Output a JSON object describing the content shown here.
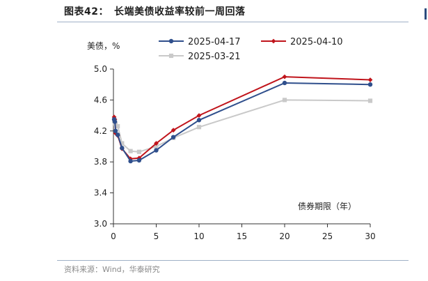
{
  "header": {
    "figure_label": "图表42：",
    "title": "长端美债收益率较前一周回落"
  },
  "source": "资料来源：Wind，华泰研究",
  "colors": {
    "accent": "#2b4c7e",
    "rule": "#9fb0c6"
  },
  "chart_data": {
    "type": "line",
    "ylabel": "美债，%",
    "xlabel": "债券期限（年）",
    "xlim": [
      0,
      30
    ],
    "ylim": [
      3.0,
      5.0
    ],
    "xticks": [
      "0",
      "5",
      "10",
      "15",
      "20",
      "25",
      "30"
    ],
    "yticks": [
      "3.0",
      "3.4",
      "3.8",
      "4.2",
      "4.6",
      "5.0"
    ],
    "grid": false,
    "legend_position": "top",
    "x": [
      0.083,
      0.167,
      0.25,
      0.5,
      1,
      2,
      3,
      5,
      7,
      10,
      20,
      30
    ],
    "series": [
      {
        "name": "2025-04-17",
        "color": "#2f4f8c",
        "marker": "circle",
        "values": [
          4.35,
          4.32,
          4.2,
          4.15,
          3.98,
          3.81,
          3.82,
          3.95,
          4.12,
          4.34,
          4.82,
          4.8
        ]
      },
      {
        "name": "2025-04-10",
        "color": "#c0141b",
        "marker": "diamond",
        "values": [
          4.38,
          4.35,
          4.17,
          4.14,
          3.97,
          3.84,
          3.85,
          4.04,
          4.21,
          4.4,
          4.9,
          4.86
        ]
      },
      {
        "name": "2025-03-21",
        "color": "#c9c9c9",
        "marker": "square",
        "values": [
          4.33,
          4.31,
          4.29,
          4.26,
          4.04,
          3.94,
          3.93,
          4.0,
          4.11,
          4.25,
          4.6,
          4.59
        ]
      }
    ]
  }
}
